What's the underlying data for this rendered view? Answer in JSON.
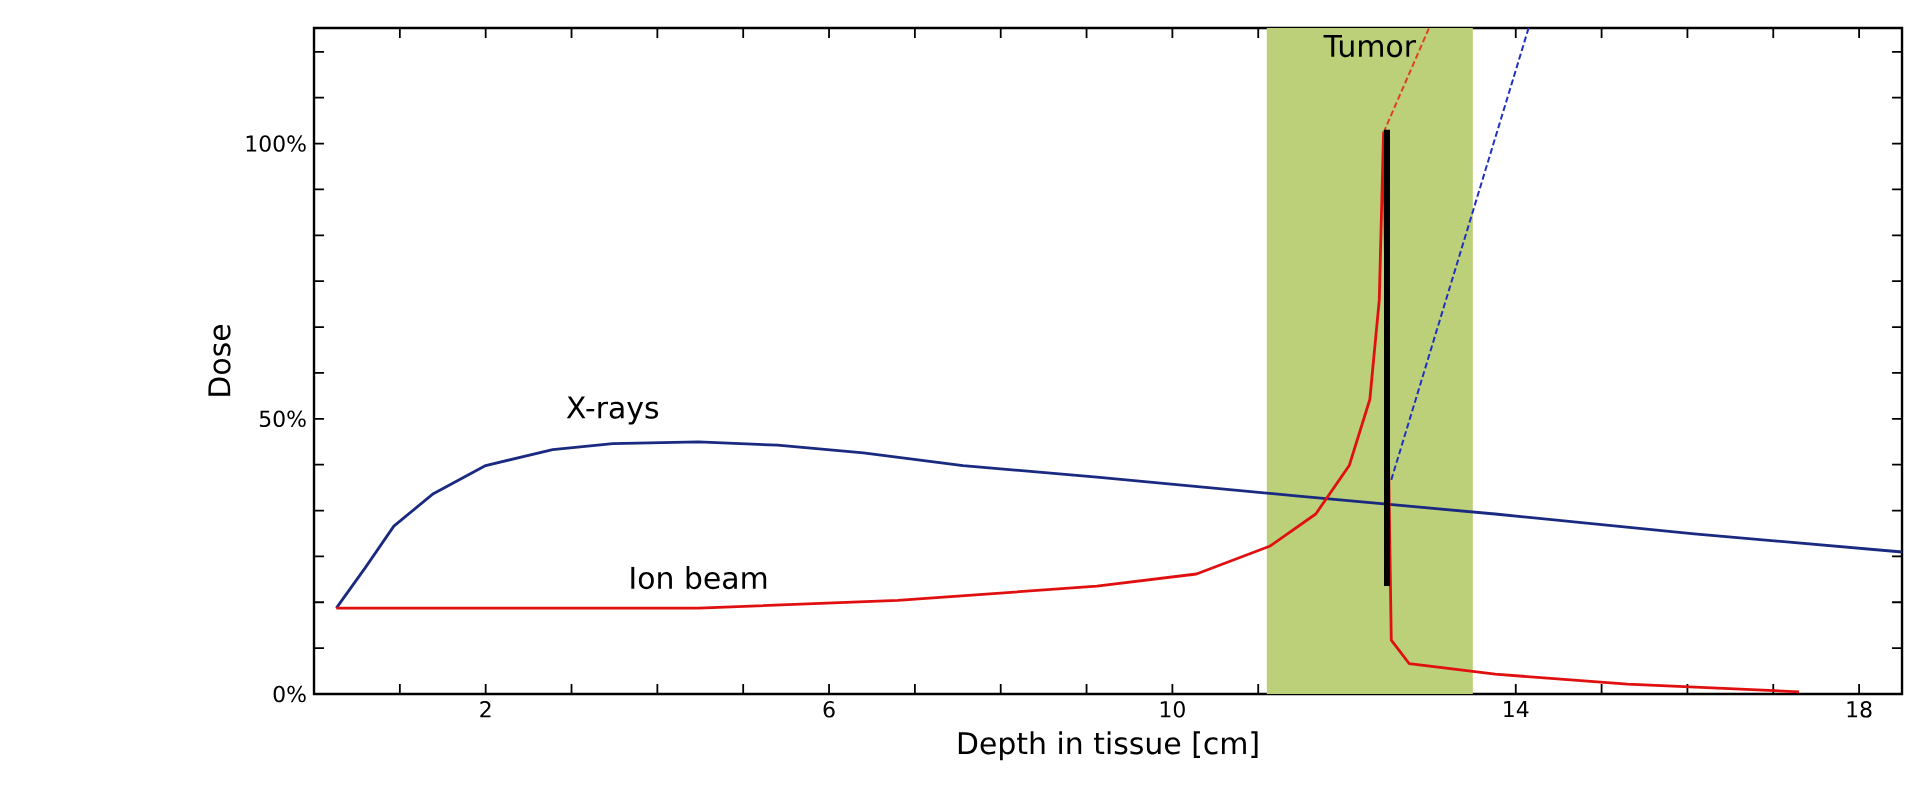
{
  "chart_data": {
    "type": "line",
    "xlabel": "Depth in tissue [cm]",
    "ylabel": "Dose",
    "xlim": [
      0,
      18.5
    ],
    "ylim": [
      0,
      121
    ],
    "xticks": [
      {
        "value": 1,
        "label": null
      },
      2,
      {
        "value": 3,
        "label": null
      },
      {
        "value": 4,
        "label": null
      },
      {
        "value": 5,
        "label": null
      },
      6,
      {
        "value": 7,
        "label": null
      },
      {
        "value": 8,
        "label": null
      },
      {
        "value": 9,
        "label": null
      },
      10,
      {
        "value": 11,
        "label": null
      },
      {
        "value": 12,
        "label": null
      },
      {
        "value": 13,
        "label": null
      },
      14,
      {
        "value": 15,
        "label": null
      },
      {
        "value": 16,
        "label": null
      },
      {
        "value": 17,
        "label": null
      },
      18
    ],
    "yticks": [
      {
        "value": 0,
        "label": "0%"
      },
      {
        "value": 8.33,
        "label": null
      },
      {
        "value": 16.67,
        "label": null
      },
      {
        "value": 25,
        "label": null
      },
      {
        "value": 33.33,
        "label": null
      },
      {
        "value": 41.67,
        "label": null
      },
      {
        "value": 50,
        "label": "50%"
      },
      {
        "value": 58.33,
        "label": null
      },
      {
        "value": 66.67,
        "label": null
      },
      {
        "value": 75,
        "label": null
      },
      {
        "value": 83.33,
        "label": null
      },
      {
        "value": 91.67,
        "label": null
      },
      {
        "value": 100,
        "label": "100%"
      },
      {
        "value": 108.33,
        "label": null
      },
      {
        "value": 116.67,
        "label": null
      }
    ],
    "bands": [
      {
        "axis": "x",
        "from": 11.1,
        "to": 13.5,
        "label": "Tumor",
        "color": "#bcd07a"
      }
    ],
    "series": [
      {
        "name": "X-rays",
        "color": "#1a2a80",
        "x": [
          0.26,
          0.6,
          0.93,
          1.39,
          2.0,
          2.78,
          3.48,
          4.48,
          5.4,
          6.4,
          7.56,
          9.12,
          11.44,
          13.76,
          16.08,
          18.5
        ],
        "values": [
          15.6,
          23,
          30.5,
          36.4,
          41.5,
          44.4,
          45.5,
          45.8,
          45.2,
          43.8,
          41.5,
          39.4,
          36,
          32.7,
          29.1,
          25.8
        ]
      },
      {
        "name": "Ion beam",
        "color": "#e01010",
        "x": [
          0.26,
          4.48,
          6.8,
          9.12,
          10.28,
          11.14,
          11.67,
          12.06,
          12.3,
          12.41,
          12.46,
          12.55,
          12.76,
          13.76,
          15.3,
          17.3
        ],
        "values": [
          15.6,
          15.6,
          17,
          19.6,
          21.8,
          26.9,
          32.7,
          41.5,
          53.5,
          71.6,
          102,
          9.8,
          5.5,
          3.6,
          1.8,
          0.4
        ]
      },
      {
        "color": "#e04020",
        "line_style": "dashed",
        "x": [
          12.46,
          12.99
        ],
        "values": [
          102,
          121
        ]
      },
      {
        "color": "#2030c0",
        "line_style": "dashed",
        "x": [
          12.55,
          14.15
        ],
        "values": [
          38.9,
          121
        ]
      },
      {
        "color": "#000000",
        "x": [
          12.5,
          12.5
        ],
        "values": [
          19.6,
          102.5
        ]
      }
    ]
  }
}
